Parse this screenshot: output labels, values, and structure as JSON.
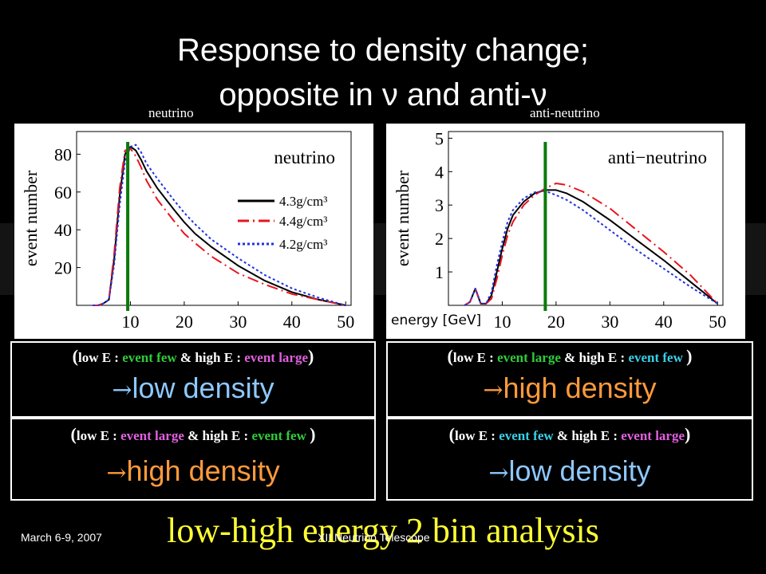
{
  "slide": {
    "title_line1": "Response to density change;",
    "title_line2": "opposite in ν and anti-ν",
    "label_left": "neutrino",
    "label_right": "anti-neutrino",
    "footer_date": "March 6-9, 2007",
    "footer_event": "XII Neutrino Telescope",
    "analysis": "low-high energy 2 bin analysis"
  },
  "boxes": {
    "top_left": {
      "open": "(",
      "p1": "low E : ",
      "p2": "event few",
      "p3": " & ",
      "p4": "high E : ",
      "p5": "event large",
      "close": ")",
      "arrow": "→",
      "verdict": "low density"
    },
    "top_right": {
      "open": "(",
      "p1": "low E : ",
      "p2": "event large",
      "p3": " & ",
      "p4": "high E : ",
      "p5": "event few ",
      "close": ")",
      "arrow": "→",
      "verdict": "high density"
    },
    "bottom_left": {
      "open": "(",
      "p1": "low E : ",
      "p2": "event large",
      "p3": " & ",
      "p4": "high E : ",
      "p5": "event few ",
      "close": ")",
      "arrow": "→",
      "verdict": "high density"
    },
    "bottom_right": {
      "open": "(",
      "p1": "low E : ",
      "p2": "event few",
      "p3": " & ",
      "p4": "high E : ",
      "p5": "event large",
      "close": ")",
      "arrow": "→",
      "verdict": "low density"
    }
  },
  "colors": {
    "rho_43": "#000000",
    "rho_44": "#e8141e",
    "rho_42": "#2233dd",
    "divider": "#0a7a0a"
  },
  "chart_data": [
    {
      "type": "line",
      "title": "neutrino",
      "xlabel": "",
      "ylabel": "event number",
      "xlim": [
        0,
        51
      ],
      "ylim": [
        0,
        92
      ],
      "xticks": [
        10,
        20,
        30,
        40,
        50
      ],
      "yticks": [
        20,
        40,
        60,
        80
      ],
      "divider_x": 9.5,
      "legend": [
        "4.3g/cm³",
        "4.4g/cm³",
        "4.2g/cm³"
      ],
      "x": [
        3,
        4,
        5,
        6,
        7,
        8,
        9,
        10,
        11,
        12,
        13,
        15,
        18,
        20,
        22,
        25,
        30,
        35,
        40,
        45,
        50
      ],
      "series": [
        {
          "name": "4.3g/cm³",
          "style": "solid",
          "values": [
            0,
            0,
            1,
            3,
            25,
            58,
            80,
            84,
            82,
            77,
            71,
            62,
            51,
            44,
            38,
            31,
            21,
            13,
            7,
            3,
            0
          ]
        },
        {
          "name": "4.4g/cm³",
          "style": "dashdot",
          "values": [
            0,
            0,
            1,
            3,
            28,
            62,
            82,
            83,
            79,
            73,
            66,
            56,
            45,
            38,
            33,
            26,
            17,
            11,
            6,
            3,
            0
          ]
        },
        {
          "name": "4.2g/cm³",
          "style": "dotted",
          "values": [
            0,
            0,
            1,
            3,
            22,
            53,
            76,
            84,
            85,
            81,
            75,
            67,
            56,
            49,
            43,
            35,
            25,
            16,
            9,
            4,
            0
          ]
        }
      ]
    },
    {
      "type": "line",
      "title": "anti−neutrino",
      "xlabel": "energy [GeV]",
      "ylabel": "event number",
      "xlim": [
        0,
        51
      ],
      "ylim": [
        0,
        5.2
      ],
      "xticks": [
        10,
        20,
        30,
        40,
        50
      ],
      "yticks": [
        1,
        2,
        3,
        4,
        5
      ],
      "divider_x": 18,
      "x": [
        3,
        4,
        5,
        6,
        7,
        8,
        9,
        10,
        11,
        12,
        14,
        16,
        18,
        20,
        22,
        25,
        30,
        35,
        40,
        45,
        50
      ],
      "series": [
        {
          "name": "4.3g/cm³",
          "style": "solid",
          "values": [
            0,
            0.1,
            0.5,
            0.05,
            0.05,
            0.3,
            1.0,
            1.7,
            2.3,
            2.7,
            3.1,
            3.35,
            3.45,
            3.45,
            3.35,
            3.1,
            2.55,
            1.95,
            1.35,
            0.7,
            0.05
          ]
        },
        {
          "name": "4.4g/cm³",
          "style": "dashdot",
          "values": [
            0,
            0.1,
            0.5,
            0.05,
            0.05,
            0.2,
            0.8,
            1.5,
            2.1,
            2.5,
            3.0,
            3.3,
            3.5,
            3.65,
            3.6,
            3.4,
            2.9,
            2.25,
            1.6,
            0.9,
            0.05
          ]
        },
        {
          "name": "4.2g/cm³",
          "style": "dotted",
          "values": [
            0,
            0.1,
            0.5,
            0.05,
            0.05,
            0.4,
            1.2,
            1.9,
            2.5,
            2.85,
            3.2,
            3.38,
            3.42,
            3.3,
            3.15,
            2.85,
            2.25,
            1.65,
            1.1,
            0.55,
            0.05
          ]
        }
      ]
    }
  ]
}
